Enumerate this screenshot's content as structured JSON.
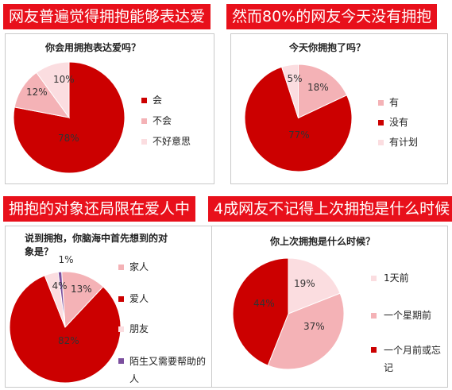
{
  "colors": {
    "accent": "#e8101b",
    "dark_red": "#cc0000",
    "pink": "#f4b2b6",
    "light_pink": "#fbdde0",
    "purple": "#7b4f9e"
  },
  "sections": [
    {
      "heading": "网友普遍觉得拥抱能够表达爱"
    },
    {
      "heading": "然而80%的网友今天没有拥抱"
    },
    {
      "heading": "拥抱的对象还局限在爱人中"
    },
    {
      "heading": "4成网友不记得上次拥抱是什么时候"
    }
  ],
  "chart_data": [
    {
      "type": "pie",
      "title": "你会用拥抱表达爱吗？",
      "categories": [
        "会",
        "不会",
        "不好意思"
      ],
      "values": [
        78,
        12,
        10
      ],
      "labels": [
        "78%",
        "12%",
        "10%"
      ],
      "colors": [
        "#cc0000",
        "#f4b2b6",
        "#fbdde0"
      ],
      "legend": "right"
    },
    {
      "type": "pie",
      "title": "今天你拥抱了吗？",
      "categories": [
        "有",
        "没有",
        "有计划"
      ],
      "values": [
        18,
        77,
        5
      ],
      "labels": [
        "18%",
        "77%",
        "5%"
      ],
      "colors": [
        "#f4b2b6",
        "#cc0000",
        "#fbdde0"
      ],
      "legend": "right"
    },
    {
      "type": "pie",
      "title": "说到拥抱，你脑海中首先想到的对象是？",
      "categories": [
        "家人",
        "爱人",
        "朋友",
        "陌生又需要帮助的人"
      ],
      "values": [
        13,
        82,
        4,
        1
      ],
      "labels": [
        "13%",
        "82%",
        "4%",
        "1%"
      ],
      "colors": [
        "#f4b2b6",
        "#cc0000",
        "#fbdde0",
        "#7b4f9e"
      ],
      "legend": "right"
    },
    {
      "type": "pie",
      "title": "你上次拥抱是什么时候？",
      "categories": [
        "1天前",
        "一个星期前",
        "一个月前或忘记"
      ],
      "values": [
        19,
        37,
        44
      ],
      "labels": [
        "19%",
        "37%",
        "44%"
      ],
      "colors": [
        "#fbdde0",
        "#f4b2b6",
        "#cc0000"
      ],
      "legend": "right"
    }
  ]
}
